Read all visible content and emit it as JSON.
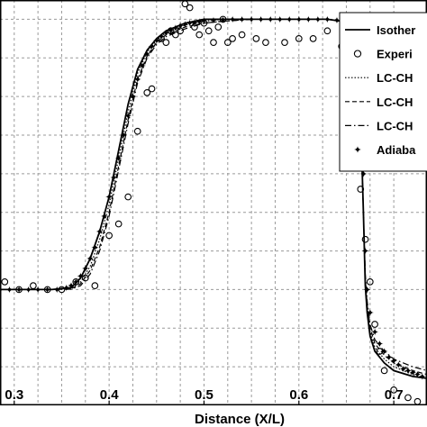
{
  "chart_data": {
    "type": "line",
    "xlabel": "Distance (X/L)",
    "ylabel": "",
    "title": "",
    "xlim": [
      0.285,
      0.735
    ],
    "ylim": [
      0,
      1.05
    ],
    "grid": true,
    "legend_position": "top-right",
    "x_ticks": [
      0.3,
      0.4,
      0.5,
      0.6,
      0.7
    ],
    "x_tick_labels": [
      "0.3",
      "0.4",
      "0.5",
      "0.6",
      "0.7"
    ],
    "legend": [
      {
        "label": "Isother",
        "style": "solid"
      },
      {
        "label": "Experi",
        "style": "circle"
      },
      {
        "label": "LC-CH",
        "style": "dotted"
      },
      {
        "label": "LC-CH",
        "style": "dashed"
      },
      {
        "label": "LC-CH",
        "style": "dashdot"
      },
      {
        "label": "Adiaba",
        "style": "star"
      }
    ],
    "series": [
      {
        "name": "Isother",
        "style": "solid",
        "x": [
          0.285,
          0.34,
          0.36,
          0.37,
          0.38,
          0.39,
          0.4,
          0.41,
          0.42,
          0.43,
          0.44,
          0.45,
          0.46,
          0.48,
          0.5,
          0.52,
          0.55,
          0.6,
          0.63,
          0.645,
          0.655,
          0.66,
          0.665,
          0.668,
          0.67,
          0.672,
          0.675,
          0.68,
          0.69,
          0.7,
          0.72,
          0.735
        ],
        "y": [
          0.3,
          0.3,
          0.305,
          0.33,
          0.38,
          0.45,
          0.54,
          0.66,
          0.78,
          0.87,
          0.92,
          0.95,
          0.97,
          0.99,
          1.0,
          1.0,
          1.0,
          1.0,
          1.0,
          0.995,
          0.97,
          0.9,
          0.75,
          0.5,
          0.31,
          0.24,
          0.18,
          0.14,
          0.11,
          0.09,
          0.075,
          0.07
        ]
      },
      {
        "name": "LC-CH",
        "style": "dotted",
        "x": [
          0.285,
          0.34,
          0.36,
          0.37,
          0.38,
          0.39,
          0.4,
          0.41,
          0.42,
          0.43,
          0.44,
          0.45,
          0.46,
          0.48,
          0.5,
          0.52,
          0.55,
          0.6,
          0.63,
          0.645,
          0.655,
          0.66,
          0.665,
          0.668,
          0.67,
          0.672,
          0.675,
          0.68,
          0.69,
          0.7,
          0.72,
          0.735
        ],
        "y": [
          0.3,
          0.3,
          0.303,
          0.32,
          0.36,
          0.43,
          0.52,
          0.64,
          0.76,
          0.86,
          0.915,
          0.945,
          0.965,
          0.985,
          0.995,
          1.0,
          1.0,
          1.0,
          1.0,
          0.995,
          0.97,
          0.9,
          0.74,
          0.5,
          0.32,
          0.25,
          0.19,
          0.15,
          0.12,
          0.1,
          0.08,
          0.07
        ]
      },
      {
        "name": "LC-CH",
        "style": "dashed",
        "x": [
          0.285,
          0.34,
          0.36,
          0.37,
          0.38,
          0.39,
          0.4,
          0.41,
          0.42,
          0.43,
          0.44,
          0.45,
          0.46,
          0.48,
          0.5,
          0.52,
          0.55,
          0.6,
          0.63,
          0.645,
          0.655,
          0.66,
          0.665,
          0.668,
          0.67,
          0.672,
          0.675,
          0.68,
          0.69,
          0.7,
          0.72,
          0.735
        ],
        "y": [
          0.3,
          0.3,
          0.302,
          0.315,
          0.35,
          0.41,
          0.5,
          0.62,
          0.74,
          0.845,
          0.905,
          0.94,
          0.96,
          0.98,
          0.99,
          0.995,
          1.0,
          1.0,
          1.0,
          0.995,
          0.97,
          0.9,
          0.74,
          0.5,
          0.33,
          0.26,
          0.2,
          0.16,
          0.13,
          0.11,
          0.09,
          0.08
        ]
      },
      {
        "name": "LC-CH",
        "style": "dashdot",
        "x": [
          0.285,
          0.34,
          0.36,
          0.37,
          0.38,
          0.39,
          0.4,
          0.41,
          0.42,
          0.43,
          0.44,
          0.45,
          0.46,
          0.48,
          0.5,
          0.52,
          0.55,
          0.6,
          0.63,
          0.645,
          0.655,
          0.66,
          0.665,
          0.668,
          0.67,
          0.672,
          0.675,
          0.68,
          0.69,
          0.7,
          0.72,
          0.735
        ],
        "y": [
          0.3,
          0.3,
          0.301,
          0.31,
          0.34,
          0.4,
          0.49,
          0.61,
          0.73,
          0.835,
          0.9,
          0.935,
          0.955,
          0.975,
          0.99,
          0.995,
          1.0,
          1.0,
          1.0,
          0.995,
          0.97,
          0.9,
          0.74,
          0.5,
          0.34,
          0.27,
          0.21,
          0.17,
          0.14,
          0.12,
          0.1,
          0.09
        ]
      },
      {
        "name": "Experi",
        "style": "circle",
        "x": [
          0.29,
          0.305,
          0.32,
          0.335,
          0.35,
          0.365,
          0.375,
          0.385,
          0.4,
          0.41,
          0.42,
          0.43,
          0.44,
          0.445,
          0.455,
          0.46,
          0.465,
          0.47,
          0.475,
          0.48,
          0.485,
          0.49,
          0.495,
          0.5,
          0.505,
          0.51,
          0.515,
          0.52,
          0.525,
          0.53,
          0.54,
          0.555,
          0.565,
          0.585,
          0.6,
          0.615,
          0.63,
          0.645,
          0.66,
          0.665,
          0.67,
          0.675,
          0.68,
          0.685,
          0.69,
          0.7,
          0.715,
          0.725
        ],
        "y": [
          0.32,
          0.3,
          0.31,
          0.3,
          0.3,
          0.32,
          0.33,
          0.31,
          0.44,
          0.47,
          0.54,
          0.71,
          0.81,
          0.82,
          0.95,
          0.94,
          0.97,
          0.96,
          0.97,
          1.04,
          1.03,
          0.98,
          0.96,
          0.99,
          0.97,
          0.94,
          0.98,
          1.0,
          0.94,
          0.95,
          0.96,
          0.95,
          0.94,
          0.94,
          0.95,
          0.95,
          0.97,
          0.93,
          0.89,
          0.56,
          0.43,
          0.32,
          0.21,
          0.14,
          0.09,
          0.04,
          0.02,
          0.01
        ]
      },
      {
        "name": "Adiaba",
        "style": "star",
        "x": [
          0.285,
          0.295,
          0.305,
          0.315,
          0.325,
          0.335,
          0.345,
          0.355,
          0.36,
          0.365,
          0.37,
          0.375,
          0.38,
          0.385,
          0.39,
          0.395,
          0.4,
          0.405,
          0.41,
          0.415,
          0.42,
          0.425,
          0.43,
          0.435,
          0.44,
          0.445,
          0.45,
          0.455,
          0.46,
          0.465,
          0.47,
          0.475,
          0.48,
          0.485,
          0.49,
          0.495,
          0.5,
          0.51,
          0.52,
          0.53,
          0.54,
          0.55,
          0.56,
          0.57,
          0.58,
          0.59,
          0.6,
          0.61,
          0.62,
          0.63,
          0.64,
          0.65,
          0.66,
          0.665,
          0.668,
          0.67,
          0.672,
          0.675,
          0.68,
          0.685,
          0.69,
          0.695,
          0.7,
          0.705,
          0.71,
          0.715,
          0.72,
          0.725,
          0.73
        ],
        "y": [
          0.3,
          0.3,
          0.3,
          0.3,
          0.3,
          0.3,
          0.3,
          0.305,
          0.31,
          0.32,
          0.335,
          0.355,
          0.38,
          0.41,
          0.45,
          0.49,
          0.54,
          0.59,
          0.64,
          0.7,
          0.75,
          0.8,
          0.845,
          0.88,
          0.91,
          0.93,
          0.945,
          0.955,
          0.965,
          0.972,
          0.978,
          0.983,
          0.987,
          0.99,
          0.992,
          0.994,
          0.996,
          0.998,
          0.999,
          1.0,
          1.0,
          1.0,
          1.0,
          1.0,
          1.0,
          1.0,
          1.0,
          1.0,
          1.0,
          1.0,
          0.998,
          0.99,
          0.95,
          0.82,
          0.6,
          0.4,
          0.3,
          0.24,
          0.19,
          0.16,
          0.14,
          0.125,
          0.115,
          0.105,
          0.095,
          0.09,
          0.085,
          0.08,
          0.075
        ]
      }
    ]
  }
}
